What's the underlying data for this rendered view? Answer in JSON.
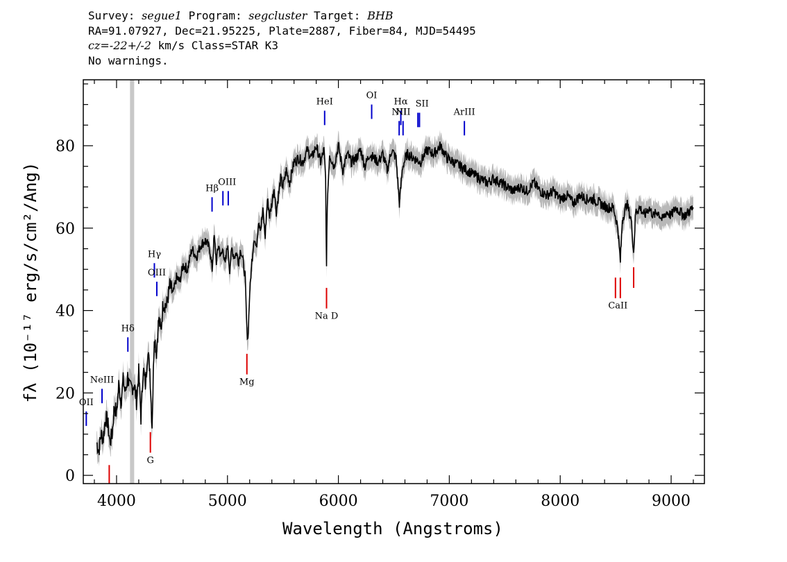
{
  "header": {
    "survey_label": "Survey:",
    "survey": "segue1",
    "program_label": "Program:",
    "program": "segcluster",
    "target_label": "Target:",
    "target": "BHB",
    "line2": "RA=91.07927, Dec=21.95225, Plate=2887, Fiber=84, MJD=54495",
    "cz_label": "cz=",
    "cz_value": "-22+/-2",
    "cz_unit": "km/s Class=STAR K3",
    "warnings": "No warnings."
  },
  "chart_data": {
    "type": "line",
    "xlabel": "Wavelength (Angstroms)",
    "ylabel": "fλ (10⁻¹⁷ erg/s/cm²/Ang)",
    "xlim": [
      3700,
      9300
    ],
    "ylim": [
      -2,
      96
    ],
    "xticks": [
      4000,
      5000,
      6000,
      7000,
      8000,
      9000
    ],
    "yticks": [
      0,
      20,
      40,
      60,
      80
    ],
    "grid": false,
    "masked_band": {
      "x": 4140,
      "color": "#c8c8c8"
    },
    "series": [
      {
        "color": "#000000",
        "error_color": "#b0b0b0",
        "x": [
          3820,
          3840,
          3860,
          3880,
          3900,
          3920,
          3940,
          3960,
          3980,
          4000,
          4020,
          4040,
          4060,
          4080,
          4100,
          4120,
          4160,
          4180,
          4200,
          4220,
          4240,
          4260,
          4280,
          4300,
          4320,
          4340,
          4360,
          4380,
          4400,
          4420,
          4450,
          4480,
          4510,
          4540,
          4570,
          4600,
          4640,
          4680,
          4720,
          4760,
          4800,
          4840,
          4862,
          4880,
          4900,
          4920,
          4940,
          4960,
          4980,
          5000,
          5020,
          5040,
          5060,
          5080,
          5100,
          5120,
          5140,
          5160,
          5175,
          5185,
          5200,
          5220,
          5240,
          5260,
          5280,
          5300,
          5320,
          5340,
          5360,
          5380,
          5400,
          5420,
          5440,
          5460,
          5480,
          5500,
          5530,
          5560,
          5600,
          5640,
          5680,
          5720,
          5760,
          5800,
          5840,
          5870,
          5885,
          5893,
          5900,
          5920,
          5960,
          6000,
          6040,
          6080,
          6120,
          6160,
          6200,
          6240,
          6280,
          6320,
          6360,
          6400,
          6440,
          6480,
          6520,
          6550,
          6563,
          6580,
          6620,
          6680,
          6740,
          6800,
          6860,
          6920,
          6980,
          7040,
          7100,
          7160,
          7220,
          7280,
          7340,
          7400,
          7460,
          7520,
          7580,
          7640,
          7700,
          7760,
          7820,
          7880,
          7940,
          8000,
          8060,
          8120,
          8180,
          8240,
          8300,
          8360,
          8420,
          8480,
          8520,
          8542,
          8560,
          8600,
          8640,
          8662,
          8680,
          8720,
          8760,
          8800,
          8840,
          8880,
          8920,
          8960,
          9000,
          9040,
          9080,
          9120,
          9160,
          9200
        ],
        "y": [
          8,
          6,
          10,
          9,
          14,
          13,
          8,
          10,
          17,
          15,
          22,
          18,
          23,
          20,
          24,
          21,
          22,
          18,
          25,
          14,
          26,
          22,
          30,
          26,
          12,
          34,
          30,
          38,
          35,
          42,
          41,
          46,
          44,
          48,
          47,
          51,
          50,
          55,
          53,
          56,
          57,
          55,
          50,
          58,
          52,
          56,
          53,
          55,
          51,
          56,
          50,
          55,
          53,
          54,
          52,
          55,
          52,
          48,
          35,
          33,
          44,
          52,
          58,
          55,
          62,
          60,
          64,
          58,
          67,
          63,
          66,
          70,
          64,
          68,
          72,
          70,
          74,
          71,
          76,
          77,
          76,
          79,
          77,
          80,
          76,
          79,
          72,
          50,
          66,
          78,
          75,
          80,
          74,
          78,
          76,
          77,
          79,
          75,
          78,
          77,
          76,
          78,
          74,
          79,
          77,
          66,
          70,
          75,
          78,
          77,
          76,
          79,
          78,
          80,
          77,
          76,
          75,
          74,
          73,
          72,
          71,
          72,
          71,
          70,
          69,
          70,
          69,
          71,
          69,
          68,
          69,
          67,
          68,
          66,
          68,
          67,
          67,
          66,
          65,
          65,
          60,
          52,
          62,
          66,
          62,
          54,
          64,
          65,
          63,
          65,
          63,
          64,
          62,
          64,
          63,
          65,
          64,
          63,
          64,
          65
        ]
      }
    ],
    "emission_lines": [
      {
        "label": "OII",
        "x": 3727,
        "y_text": 17
      },
      {
        "label": "NeIII",
        "x": 3869,
        "y_text": 22.5
      },
      {
        "label": "Hδ",
        "x": 4102,
        "y_text": 35
      },
      {
        "label": "Hγ",
        "x": 4341,
        "y_text": 53
      },
      {
        "label": "OIII",
        "x": 4363,
        "y_text": 48.5
      },
      {
        "label": "Hβ",
        "x": 4861,
        "y_text": 69
      },
      {
        "label": "OIII",
        "x": 4959,
        "x2": 5007,
        "y_text": 70.5
      },
      {
        "label": "HeI",
        "x": 5876,
        "y_text": 90
      },
      {
        "label": "OI",
        "x": 6300,
        "y_text": 91.5
      },
      {
        "label": "NII",
        "x": 6548,
        "y_text": 87.5
      },
      {
        "label": "Hα",
        "x": 6563,
        "y_text": 90
      },
      {
        "label": "NII",
        "x": 6583,
        "y_text": 87.5
      },
      {
        "label": "SII",
        "x": 6717,
        "x2": 6731,
        "y_text": 89.5
      },
      {
        "label": "ArIII",
        "x": 7136,
        "y_text": 87.5
      }
    ],
    "absorption_lines": [
      {
        "label": "",
        "x": 3934
      },
      {
        "label": "G",
        "x": 4305,
        "y_text": 3
      },
      {
        "label": "Mg",
        "x": 5175,
        "y_text": 22
      },
      {
        "label": "Na D",
        "x": 5893,
        "y_text": 38
      },
      {
        "label": "CaII",
        "x": 8498,
        "x2": 8542,
        "y_text": 40.5
      },
      {
        "label": "",
        "x": 8662
      }
    ],
    "colors": {
      "emission": "#0000cc",
      "absorption": "#dd0000",
      "spectrum": "#000000",
      "error": "#b0b0b0"
    }
  }
}
